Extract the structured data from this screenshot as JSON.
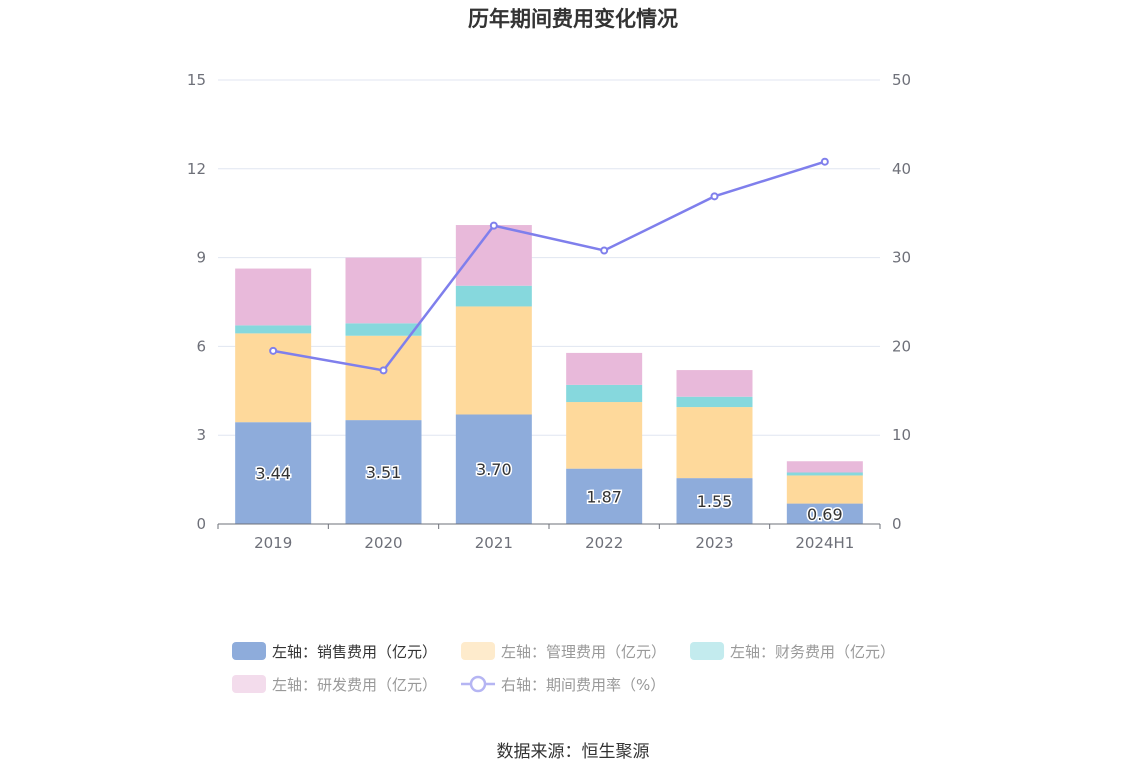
{
  "title": "历年期间费用变化情况",
  "source": "数据来源：恒生聚源",
  "chart_data": {
    "type": "bar",
    "stacked": true,
    "title": "历年期间费用变化情况",
    "categories": [
      "2019",
      "2020",
      "2021",
      "2022",
      "2023",
      "2024H1"
    ],
    "y_left": {
      "min": 0,
      "max": 15,
      "ticks": [
        "0",
        "3",
        "6",
        "9",
        "12",
        "15"
      ]
    },
    "y_right": {
      "min": 0,
      "max": 50,
      "ticks": [
        "0",
        "10",
        "20",
        "30",
        "40",
        "50"
      ]
    },
    "grid": true,
    "legend_position": "bottom",
    "series": [
      {
        "name": "左轴：销售费用（亿元）",
        "type": "bar",
        "axis": "left",
        "color": "#8eacdb",
        "legend_color": "#8eacdb",
        "values": [
          3.44,
          3.51,
          3.7,
          1.87,
          1.55,
          0.69
        ],
        "labels": [
          "3.44",
          "3.51",
          "3.70",
          "1.87",
          "1.55",
          "0.69"
        ]
      },
      {
        "name": "左轴：管理费用（亿元）",
        "type": "bar",
        "axis": "left",
        "color": "#fed99b",
        "legend_color": "#feebcc",
        "values": [
          3.0,
          2.85,
          3.65,
          2.25,
          2.4,
          0.95
        ]
      },
      {
        "name": "左轴：财务费用（亿元）",
        "type": "bar",
        "axis": "left",
        "color": "#86d8dd",
        "legend_color": "#c3ebee",
        "values": [
          0.27,
          0.42,
          0.7,
          0.58,
          0.35,
          0.1
        ]
      },
      {
        "name": "左轴：研发费用（亿元）",
        "type": "bar",
        "axis": "left",
        "color": "#e8b9da",
        "legend_color": "#f3dcec",
        "values": [
          1.92,
          2.22,
          2.05,
          1.08,
          0.9,
          0.38
        ]
      },
      {
        "name": "右轴：期间费用率（%）",
        "type": "line",
        "axis": "right",
        "color": "#7f7fec",
        "legend_color": "#b5b5f3",
        "values": [
          19.5,
          17.3,
          33.6,
          30.8,
          36.9,
          40.8
        ]
      }
    ],
    "legend_text_colors": [
      "#333333",
      "#999999",
      "#999999",
      "#999999",
      "#999999"
    ]
  }
}
